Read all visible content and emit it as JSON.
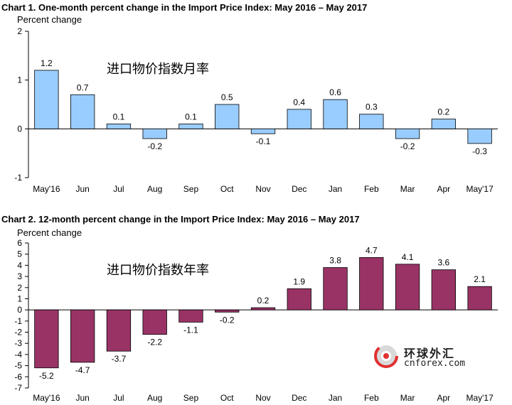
{
  "chart_data": [
    {
      "type": "bar",
      "title": "Chart 1. One-month percent change in the Import Price Index: May 2016 – May 2017",
      "ylabel": "Percent change",
      "annotation": "进口物价指数月率",
      "categories": [
        "May'16",
        "Jun",
        "Jul",
        "Aug",
        "Sep",
        "Oct",
        "Nov",
        "Dec",
        "Jan",
        "Feb",
        "Mar",
        "Apr",
        "May'17"
      ],
      "values": [
        1.2,
        0.7,
        0.1,
        -0.2,
        0.1,
        0.5,
        -0.1,
        0.4,
        0.6,
        0.3,
        -0.2,
        0.2,
        -0.3
      ],
      "data_labels": [
        "1.2",
        "0.7",
        "0.1",
        "-0.2",
        "0.1",
        "0.5",
        "-0.1",
        "0.4",
        "0.6",
        "0.3",
        "-0.2",
        "0.2",
        "-0.3"
      ],
      "ylim": [
        -1,
        2
      ],
      "yticks": [
        2,
        1,
        0,
        -1
      ],
      "grid": false,
      "bar_color": "#99ccff"
    },
    {
      "type": "bar",
      "title": "Chart 2. 12-month percent change in the Import Price Index: May 2016 – May 2017",
      "ylabel": "Percent change",
      "annotation": "进口物价指数年率",
      "categories": [
        "May'16",
        "Jun",
        "Jul",
        "Aug",
        "Sep",
        "Oct",
        "Nov",
        "Dec",
        "Jan",
        "Feb",
        "Mar",
        "Apr",
        "May'17"
      ],
      "values": [
        -5.2,
        -4.7,
        -3.7,
        -2.2,
        -1.1,
        -0.2,
        0.2,
        1.9,
        3.8,
        4.7,
        4.1,
        3.6,
        2.1
      ],
      "data_labels": [
        "-5.2",
        "-4.7",
        "-3.7",
        "-2.2",
        "-1.1",
        "-0.2",
        "0.2",
        "1.9",
        "3.8",
        "4.7",
        "4.1",
        "3.6",
        "2.1"
      ],
      "ylim": [
        -7,
        6
      ],
      "yticks": [
        6,
        5,
        4,
        3,
        2,
        1,
        0,
        -1,
        -2,
        -3,
        -4,
        -5,
        -6,
        -7
      ],
      "grid": false,
      "bar_color": "#993366"
    }
  ],
  "watermark": {
    "name_cn": "环球外汇",
    "domain": "cnforex.com"
  }
}
